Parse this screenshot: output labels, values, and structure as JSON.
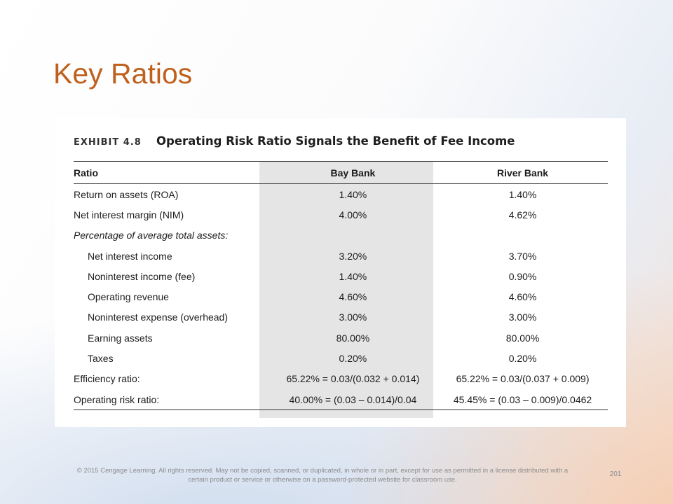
{
  "slide": {
    "title": "Key Ratios"
  },
  "exhibit": {
    "label": "EXHIBIT 4.8",
    "title": "Operating Risk Ratio Signals the Benefit of Fee Income",
    "columns": [
      "Ratio",
      "Bay Bank",
      "River Bank"
    ],
    "rows": [
      {
        "ratio": "Return on assets (ROA)",
        "bay": "1.40%",
        "river": "1.40%"
      },
      {
        "ratio": "Net interest margin (NIM)",
        "bay": "4.00%",
        "river": "4.62%"
      },
      {
        "ratio": "Percentage of average total assets:",
        "bay": "",
        "river": ""
      },
      {
        "ratio": "Net interest income",
        "bay": "3.20%",
        "river": "3.70%"
      },
      {
        "ratio": "Noninterest income (fee)",
        "bay": "1.40%",
        "river": "0.90%"
      },
      {
        "ratio": "Operating revenue",
        "bay": "4.60%",
        "river": "4.60%"
      },
      {
        "ratio": "Noninterest expense (overhead)",
        "bay": "3.00%",
        "river": "3.00%"
      },
      {
        "ratio": "Earning assets",
        "bay": "80.00%",
        "river": "80.00%"
      },
      {
        "ratio": "Taxes",
        "bay": "0.20%",
        "river": "0.20%"
      },
      {
        "ratio": "Efficiency ratio:",
        "bay": "65.22% = 0.03/(0.032 + 0.014)",
        "river": "65.22% = 0.03/(0.037 + 0.009)"
      },
      {
        "ratio": "Operating risk ratio:",
        "bay": "40.00% = (0.03 – 0.014)/0.04",
        "river": "45.45% = (0.03 – 0.009)/0.0462"
      }
    ]
  },
  "footer": {
    "copyright": "© 2015 Cengage Learning. All rights reserved. May not be copied, scanned, or duplicated, in whole or in part, except for use as permitted in a license distributed with a certain product or service or otherwise on a password-protected website for classroom use.",
    "page_number": "201"
  }
}
